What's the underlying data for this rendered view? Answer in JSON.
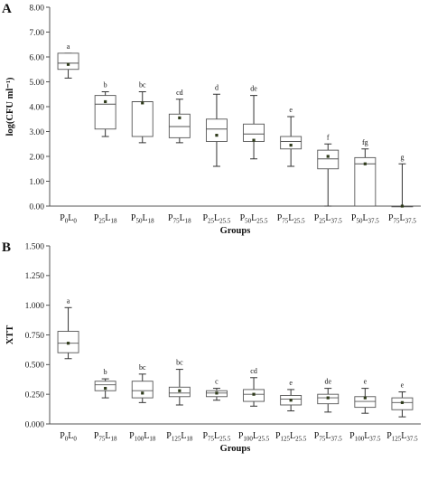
{
  "chart_data": [
    {
      "type": "boxplot",
      "panel_label": "A",
      "ylabel": "log(CFU ml⁻¹)",
      "xlabel": "Groups",
      "ylim": [
        0,
        8
      ],
      "yticks": [
        "0.00",
        "1.00",
        "2.00",
        "3.00",
        "4.00",
        "5.00",
        "6.00",
        "7.00",
        "8.00"
      ],
      "ytick_values": [
        0,
        1,
        2,
        3,
        4,
        5,
        6,
        7,
        8
      ],
      "categories": [
        {
          "P": "0",
          "L": "0"
        },
        {
          "P": "25",
          "L": "18"
        },
        {
          "P": "50",
          "L": "18"
        },
        {
          "P": "75",
          "L": "18"
        },
        {
          "P": "25",
          "L": "25.5"
        },
        {
          "P": "50",
          "L": "25.5"
        },
        {
          "P": "75",
          "L": "25.5"
        },
        {
          "P": "25",
          "L": "37.5"
        },
        {
          "P": "50",
          "L": "37.5"
        },
        {
          "P": "75",
          "L": "37.5"
        }
      ],
      "boxes": [
        {
          "min": 5.15,
          "q1": 5.5,
          "median": 5.75,
          "q3": 6.15,
          "max": 6.15,
          "mean": 5.7,
          "letter": "a"
        },
        {
          "min": 2.8,
          "q1": 3.1,
          "median": 4.1,
          "q3": 4.45,
          "max": 4.6,
          "mean": 4.2,
          "letter": "b"
        },
        {
          "min": 2.55,
          "q1": 2.8,
          "median": 4.2,
          "q3": 4.2,
          "max": 4.6,
          "mean": 4.15,
          "letter": "bc"
        },
        {
          "min": 2.55,
          "q1": 2.75,
          "median": 3.2,
          "q3": 3.7,
          "max": 4.3,
          "mean": 3.55,
          "letter": "cd"
        },
        {
          "min": 1.6,
          "q1": 2.6,
          "median": 3.1,
          "q3": 3.5,
          "max": 4.5,
          "mean": 2.85,
          "letter": "d"
        },
        {
          "min": 1.9,
          "q1": 2.6,
          "median": 2.9,
          "q3": 3.3,
          "max": 4.45,
          "mean": 2.65,
          "letter": "de"
        },
        {
          "min": 1.6,
          "q1": 2.3,
          "median": 2.6,
          "q3": 2.8,
          "max": 3.6,
          "mean": 2.45,
          "letter": "e"
        },
        {
          "min": 0.0,
          "q1": 1.5,
          "median": 1.9,
          "q3": 2.25,
          "max": 2.5,
          "mean": 2.0,
          "letter": "f"
        },
        {
          "min": 0.0,
          "q1": 0.0,
          "median": 1.7,
          "q3": 1.95,
          "max": 2.3,
          "mean": 1.7,
          "letter": "fg"
        },
        {
          "min": 0.0,
          "q1": 0.0,
          "median": 0.0,
          "q3": 0.0,
          "max": 1.7,
          "mean": 0.0,
          "letter": "g"
        }
      ]
    },
    {
      "type": "boxplot",
      "panel_label": "B",
      "ylabel": "XTT",
      "xlabel": "Groups",
      "ylim": [
        0,
        1.5
      ],
      "yticks": [
        "0.000",
        "0.250",
        "0.500",
        "0.750",
        "1.000",
        "1.250",
        "1.500"
      ],
      "ytick_values": [
        0,
        0.25,
        0.5,
        0.75,
        1.0,
        1.25,
        1.5
      ],
      "categories": [
        {
          "P": "0",
          "L": "0"
        },
        {
          "P": "75",
          "L": "18"
        },
        {
          "P": "100",
          "L": "18"
        },
        {
          "P": "125",
          "L": "18"
        },
        {
          "P": "75",
          "L": "25.5"
        },
        {
          "P": "100",
          "L": "25.5"
        },
        {
          "P": "125",
          "L": "25.5"
        },
        {
          "P": "75",
          "L": "37.5"
        },
        {
          "P": "100",
          "L": "37.5"
        },
        {
          "P": "125",
          "L": "37.5"
        }
      ],
      "boxes": [
        {
          "min": 0.55,
          "q1": 0.6,
          "median": 0.68,
          "q3": 0.78,
          "max": 0.98,
          "mean": 0.68,
          "letter": "a"
        },
        {
          "min": 0.22,
          "q1": 0.28,
          "median": 0.33,
          "q3": 0.36,
          "max": 0.38,
          "mean": 0.3,
          "letter": "b"
        },
        {
          "min": 0.18,
          "q1": 0.22,
          "median": 0.28,
          "q3": 0.36,
          "max": 0.42,
          "mean": 0.26,
          "letter": "bc"
        },
        {
          "min": 0.16,
          "q1": 0.23,
          "median": 0.26,
          "q3": 0.31,
          "max": 0.46,
          "mean": 0.28,
          "letter": "bc"
        },
        {
          "min": 0.2,
          "q1": 0.23,
          "median": 0.26,
          "q3": 0.28,
          "max": 0.3,
          "mean": 0.26,
          "letter": "c"
        },
        {
          "min": 0.15,
          "q1": 0.19,
          "median": 0.25,
          "q3": 0.29,
          "max": 0.39,
          "mean": 0.25,
          "letter": "cd"
        },
        {
          "min": 0.11,
          "q1": 0.16,
          "median": 0.21,
          "q3": 0.24,
          "max": 0.29,
          "mean": 0.2,
          "letter": "e"
        },
        {
          "min": 0.1,
          "q1": 0.17,
          "median": 0.22,
          "q3": 0.25,
          "max": 0.3,
          "mean": 0.22,
          "letter": "de"
        },
        {
          "min": 0.09,
          "q1": 0.14,
          "median": 0.19,
          "q3": 0.23,
          "max": 0.3,
          "mean": 0.22,
          "letter": "e"
        },
        {
          "min": 0.06,
          "q1": 0.12,
          "median": 0.18,
          "q3": 0.22,
          "max": 0.27,
          "mean": 0.18,
          "letter": "e"
        }
      ]
    }
  ]
}
